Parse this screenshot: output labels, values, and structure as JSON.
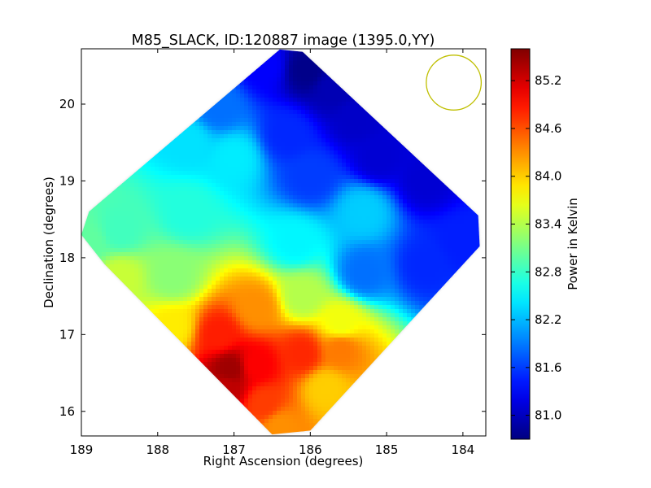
{
  "chart_data": {
    "type": "heatmap",
    "title": "M85_SLACK, ID:120887 image (1395.0,YY)",
    "xlabel": "Right Ascension (degrees)",
    "ylabel": "Declination (degrees)",
    "colorbar_label": "Power in Kelvin",
    "xlim": [
      189.0,
      183.7
    ],
    "ylim": [
      15.68,
      20.72
    ],
    "x_ticks": [
      189,
      188,
      187,
      186,
      185,
      184
    ],
    "x_tick_labels": [
      "189",
      "188",
      "187",
      "186",
      "185",
      "184"
    ],
    "y_ticks": [
      16,
      17,
      18,
      19,
      20
    ],
    "y_tick_labels": [
      "16",
      "17",
      "18",
      "19",
      "20"
    ],
    "colorbar_range": [
      80.7,
      85.6
    ],
    "colorbar_ticks": [
      81.0,
      81.6,
      82.2,
      82.8,
      83.4,
      84.0,
      84.6,
      85.2
    ],
    "colorbar_tick_labels": [
      "81.0",
      "81.6",
      "82.2",
      "82.8",
      "83.4",
      "84.0",
      "84.6",
      "85.2"
    ],
    "colormap": "jet",
    "footprint_polygon": [
      [
        186.4,
        20.71
      ],
      [
        186.1,
        20.68
      ],
      [
        183.8,
        18.55
      ],
      [
        183.78,
        18.15
      ],
      [
        186.0,
        15.75
      ],
      [
        186.5,
        15.7
      ],
      [
        188.7,
        17.92
      ],
      [
        189.0,
        18.3
      ],
      [
        188.9,
        18.6
      ]
    ],
    "field_points": [
      {
        "ra": 186.05,
        "dec": 20.45,
        "value": 80.75
      },
      {
        "ra": 185.7,
        "dec": 20.2,
        "value": 80.95
      },
      {
        "ra": 185.4,
        "dec": 19.8,
        "value": 81.05
      },
      {
        "ra": 184.5,
        "dec": 19.0,
        "value": 81.1
      },
      {
        "ra": 185.1,
        "dec": 19.3,
        "value": 81.1
      },
      {
        "ra": 186.6,
        "dec": 20.5,
        "value": 81.3
      },
      {
        "ra": 186.3,
        "dec": 19.6,
        "value": 81.5
      },
      {
        "ra": 186.0,
        "dec": 19.05,
        "value": 81.6
      },
      {
        "ra": 187.2,
        "dec": 19.95,
        "value": 81.85
      },
      {
        "ra": 184.0,
        "dec": 18.2,
        "value": 81.45
      },
      {
        "ra": 184.5,
        "dec": 17.9,
        "value": 81.5
      },
      {
        "ra": 185.3,
        "dec": 17.8,
        "value": 81.85
      },
      {
        "ra": 185.3,
        "dec": 18.6,
        "value": 82.3
      },
      {
        "ra": 187.0,
        "dec": 19.3,
        "value": 82.45
      },
      {
        "ra": 187.6,
        "dec": 19.5,
        "value": 82.4
      },
      {
        "ra": 186.2,
        "dec": 18.2,
        "value": 82.5
      },
      {
        "ra": 187.6,
        "dec": 18.6,
        "value": 82.7
      },
      {
        "ra": 188.5,
        "dec": 18.35,
        "value": 82.85
      },
      {
        "ra": 188.9,
        "dec": 18.2,
        "value": 83.0
      },
      {
        "ra": 187.8,
        "dec": 17.75,
        "value": 83.2
      },
      {
        "ra": 186.1,
        "dec": 17.5,
        "value": 83.4
      },
      {
        "ra": 188.5,
        "dec": 17.75,
        "value": 83.5
      },
      {
        "ra": 185.6,
        "dec": 17.15,
        "value": 83.7
      },
      {
        "ra": 186.7,
        "dec": 17.35,
        "value": 84.3
      },
      {
        "ra": 187.8,
        "dec": 17.1,
        "value": 83.85
      },
      {
        "ra": 185.8,
        "dec": 16.3,
        "value": 84.0
      },
      {
        "ra": 185.6,
        "dec": 16.8,
        "value": 84.4
      },
      {
        "ra": 186.1,
        "dec": 16.75,
        "value": 84.8
      },
      {
        "ra": 186.6,
        "dec": 16.1,
        "value": 84.7
      },
      {
        "ra": 186.4,
        "dec": 15.8,
        "value": 84.3
      },
      {
        "ra": 187.2,
        "dec": 17.0,
        "value": 84.85
      },
      {
        "ra": 186.7,
        "dec": 16.6,
        "value": 85.0
      },
      {
        "ra": 187.05,
        "dec": 16.55,
        "value": 85.45
      },
      {
        "ra": 187.1,
        "dec": 16.3,
        "value": 85.3
      }
    ],
    "beam_circle": {
      "ra": 184.12,
      "dec": 20.28,
      "radius_deg": 0.36
    },
    "grid": false
  },
  "colors": {
    "beam_circle": "#bfbf00",
    "axes": "#000000"
  }
}
